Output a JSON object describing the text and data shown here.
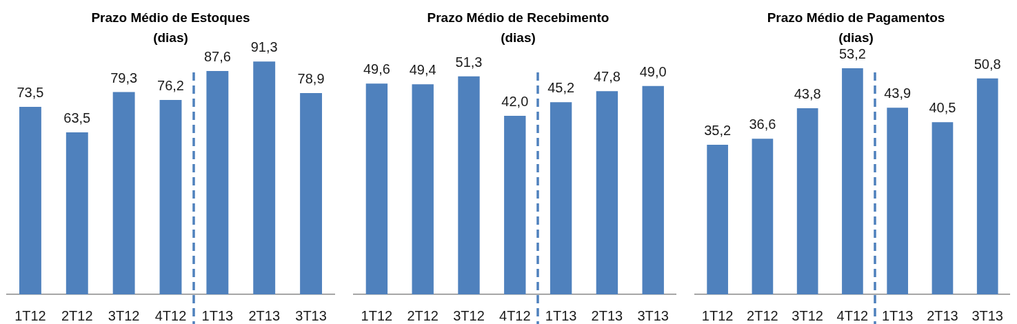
{
  "chart_data": [
    {
      "type": "bar",
      "title": "Prazo Médio de Estoques\n(dias)",
      "categories": [
        "1T12",
        "2T12",
        "3T12",
        "4T12",
        "1T13",
        "2T13",
        "3T13"
      ],
      "values": [
        73.5,
        63.5,
        79.3,
        76.2,
        87.6,
        91.3,
        78.9
      ],
      "value_labels": [
        "73,5",
        "63,5",
        "79,3",
        "76,2",
        "87,6",
        "91,3",
        "78,9"
      ],
      "color": "#4f81bd"
    },
    {
      "type": "bar",
      "title": "Prazo Médio de Recebimento\n(dias)",
      "categories": [
        "1T12",
        "2T12",
        "3T12",
        "4T12",
        "1T13",
        "2T13",
        "3T13"
      ],
      "values": [
        49.6,
        49.4,
        51.3,
        42.0,
        45.2,
        47.8,
        49.0
      ],
      "value_labels": [
        "49,6",
        "49,4",
        "51,3",
        "42,0",
        "45,2",
        "47,8",
        "49,0"
      ],
      "color": "#4f81bd"
    },
    {
      "type": "bar",
      "title": "Prazo Médio de Pagamentos\n(dias)",
      "categories": [
        "1T12",
        "2T12",
        "3T12",
        "4T12",
        "1T13",
        "2T13",
        "3T13"
      ],
      "values": [
        35.2,
        36.6,
        43.8,
        53.2,
        43.9,
        40.5,
        50.8
      ],
      "value_labels": [
        "35,2",
        "36,6",
        "43,8",
        "53,2",
        "43,9",
        "40,5",
        "50,8"
      ],
      "color": "#4f81bd"
    }
  ]
}
